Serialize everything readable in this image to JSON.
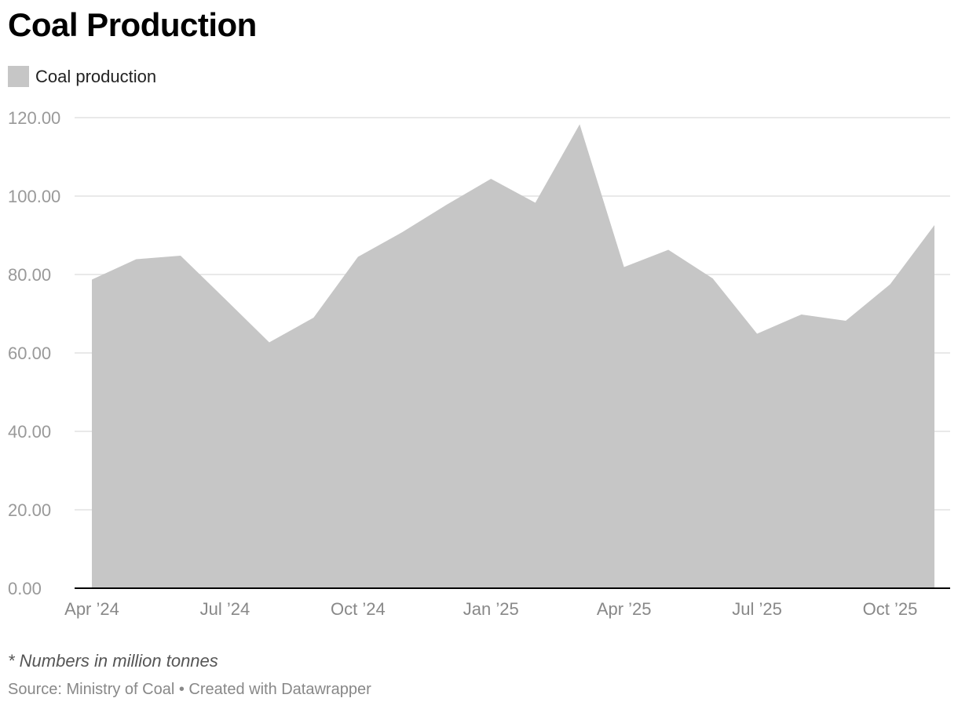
{
  "chart_data": {
    "type": "area",
    "title": "Coal Production",
    "legend": [
      {
        "name": "Coal production",
        "color": "#c6c6c6"
      }
    ],
    "series": [
      {
        "name": "Coal production",
        "color": "#c6c6c6",
        "x": [
          "2024-04",
          "2024-05",
          "2024-06",
          "2024-07",
          "2024-08",
          "2024-09",
          "2024-10",
          "2024-11",
          "2024-12",
          "2025-01",
          "2025-02",
          "2025-03",
          "2025-04",
          "2025-05",
          "2025-06",
          "2025-07",
          "2025-08",
          "2025-09",
          "2025-10",
          "2025-11"
        ],
        "values": [
          78.7,
          83.9,
          84.8,
          73.8,
          62.7,
          69.0,
          84.5,
          90.8,
          97.8,
          104.4,
          98.3,
          118.3,
          81.9,
          86.3,
          79.0,
          64.9,
          69.8,
          68.2,
          77.5,
          92.6
        ]
      }
    ],
    "x_ticks": [
      {
        "x": "2024-04",
        "label": "Apr ’24"
      },
      {
        "x": "2024-07",
        "label": "Jul ’24"
      },
      {
        "x": "2024-10",
        "label": "Oct ’24"
      },
      {
        "x": "2025-01",
        "label": "Jan ’25"
      },
      {
        "x": "2025-04",
        "label": "Apr ’25"
      },
      {
        "x": "2025-07",
        "label": "Jul ’25"
      },
      {
        "x": "2025-10",
        "label": "Oct ’25"
      }
    ],
    "y_ticks": [
      "0.00",
      "20.00",
      "40.00",
      "60.00",
      "80.00",
      "100.00",
      "120.00"
    ],
    "ylim": [
      0,
      120
    ],
    "grid": true,
    "legend_position": "top-left"
  },
  "note": "* Numbers in million tonnes",
  "source": "Source: Ministry of Coal • Created with Datawrapper"
}
